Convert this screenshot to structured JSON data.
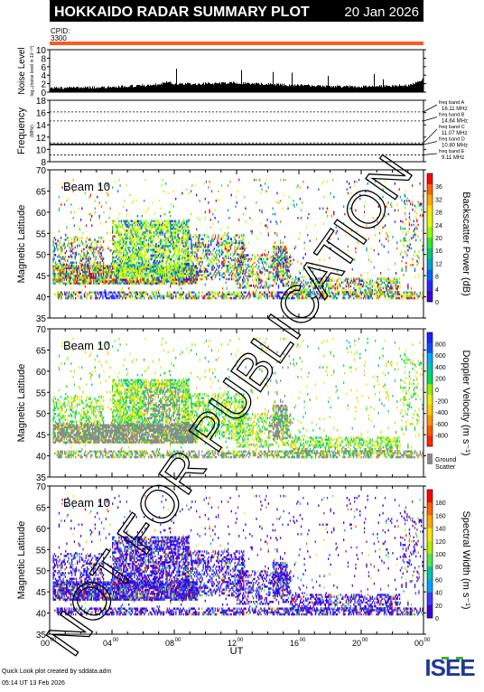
{
  "header": {
    "title": "HOKKAIDO RADAR SUMMARY PLOT",
    "date": "20 Jan 2026",
    "cpid_label": "CPID:",
    "cpid_value": "3300"
  },
  "watermark": "NOT FOR PUBLICATION",
  "footer": {
    "credit": "Quick Look plot created by sddata.adm",
    "timestamp": "05:14 UT 13 Feb 2026",
    "logo": "ISEE"
  },
  "colors": {
    "cpid_bar": "#ff5a1f",
    "ground_scatter": "#888888",
    "scale_power": [
      "#ff0000",
      "#ff6400",
      "#ffaa00",
      "#ffe600",
      "#e6ff00",
      "#96ff00",
      "#32e632",
      "#00c878",
      "#00a0c8",
      "#0064ff",
      "#2828ff",
      "#3c00dc"
    ],
    "scale_velocity": [
      "#1e1eff",
      "#0050ff",
      "#00aaff",
      "#00c8a0",
      "#00dc50",
      "#96f000",
      "#e6f000",
      "#ffc800",
      "#ff9600",
      "#ff5a00",
      "#ff2800"
    ],
    "scale_width": [
      "#ff0000",
      "#ff6400",
      "#ffaa00",
      "#ffe600",
      "#b4f000",
      "#50e650",
      "#00c8a0",
      "#00a0ff",
      "#3c3cff",
      "#3c00dc"
    ]
  },
  "chart_data": [
    {
      "type": "line",
      "name": "noise",
      "ylabel": "Noise Level",
      "ylabel_sub": "log₁₀(noise level in 10⁻²⁰)",
      "ylim": [
        0,
        10
      ],
      "yticks": [
        0,
        2,
        4,
        6,
        8,
        10
      ],
      "x_hours": [
        0,
        1,
        2,
        3,
        4,
        5,
        6,
        7,
        7.5,
        8,
        9,
        10,
        11,
        12,
        13,
        14,
        15,
        16,
        17,
        18,
        19,
        20,
        21,
        22,
        22.5,
        23,
        23.5,
        24
      ],
      "values": [
        1.0,
        1.0,
        1.1,
        1.1,
        1.2,
        1.4,
        1.6,
        1.8,
        2.4,
        2.0,
        1.9,
        2.0,
        2.1,
        2.2,
        2.0,
        1.9,
        1.7,
        1.6,
        1.5,
        1.4,
        1.3,
        1.3,
        1.4,
        1.5,
        1.6,
        1.5,
        2.2,
        3.2
      ]
    },
    {
      "type": "line",
      "name": "frequency",
      "ylabel": "Frequency",
      "ylabel_sub": "(MHz)",
      "ylim": [
        8,
        18
      ],
      "yticks": [
        8,
        10,
        12,
        14,
        16,
        18
      ],
      "bands": [
        {
          "label": "freq band A",
          "mhz": "16.11 MHz",
          "value": 16.11
        },
        {
          "label": "freq band B",
          "mhz": "14.64 MHz",
          "value": 14.64
        },
        {
          "label": "freq band C",
          "mhz": "11.07 MHz",
          "value": 11.07
        },
        {
          "label": "freq band D",
          "mhz": "10.80 MHz",
          "value": 10.8
        },
        {
          "label": "freq band E",
          "mhz": "9.11 MHz",
          "value": 9.11
        }
      ],
      "operating_mhz": 10.8
    },
    {
      "type": "heatmap",
      "name": "power",
      "panel_label": "Beam 10",
      "ylabel": "Magnetic Latitude",
      "ylim": [
        35,
        70
      ],
      "yticks": [
        35,
        40,
        45,
        50,
        55,
        60,
        65,
        70
      ],
      "colorbar_label": "Backscatter Power (dB)",
      "colorbar_ticks": [
        0,
        4,
        8,
        12,
        16,
        20,
        24,
        28,
        32,
        36
      ]
    },
    {
      "type": "heatmap",
      "name": "velocity",
      "panel_label": "Beam 10",
      "ylabel": "Magnetic Latitude",
      "ylim": [
        35,
        70
      ],
      "yticks": [
        35,
        40,
        45,
        50,
        55,
        60,
        65,
        70
      ],
      "colorbar_label": "Doppler Velocity (m s⁻¹)",
      "colorbar_ticks": [
        -800,
        -600,
        -400,
        -200,
        0,
        200,
        400,
        600,
        800
      ],
      "ground_label": [
        "Ground",
        "Scatter"
      ]
    },
    {
      "type": "heatmap",
      "name": "width",
      "panel_label": "Beam 10",
      "ylabel": "Magnetic Latitude",
      "ylim": [
        35,
        70
      ],
      "yticks": [
        35,
        40,
        45,
        50,
        55,
        60,
        65,
        70
      ],
      "colorbar_label": "Spectral Width (m s⁻¹)",
      "colorbar_ticks": [
        0,
        20,
        40,
        60,
        80,
        100,
        120,
        140,
        160,
        180
      ]
    }
  ],
  "x_axis": {
    "label": "UT",
    "ticks": [
      {
        "h": 0,
        "major": "00",
        "sup": "00"
      },
      {
        "h": 4,
        "major": "04",
        "sup": "00"
      },
      {
        "h": 8,
        "major": "08",
        "sup": "00"
      },
      {
        "h": 12,
        "major": "12",
        "sup": "00"
      },
      {
        "h": 16,
        "major": "16",
        "sup": "00"
      },
      {
        "h": 20,
        "major": "20",
        "sup": "00"
      },
      {
        "h": 24,
        "major": "00",
        "sup": "00"
      }
    ]
  }
}
